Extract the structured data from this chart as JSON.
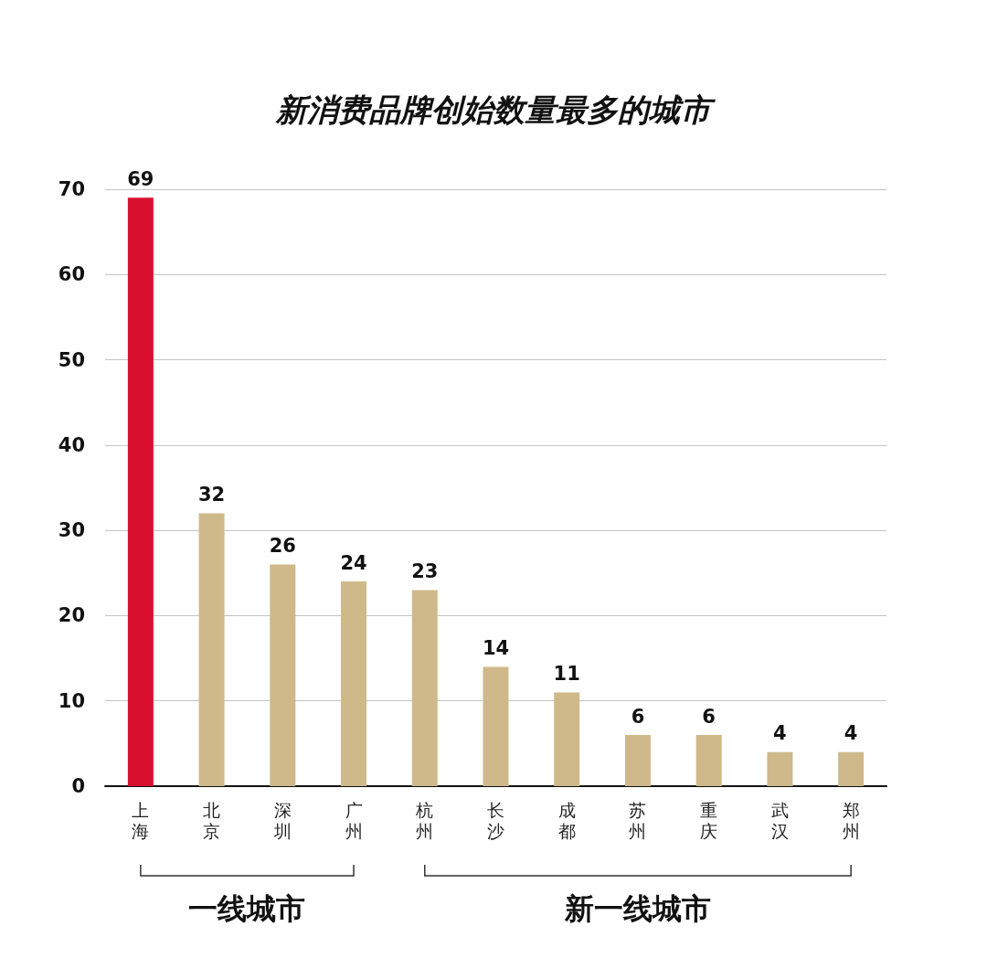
{
  "chart_data": {
    "type": "bar",
    "title": "新消费品牌创始数量最多的城市",
    "categories": [
      "上海",
      "北京",
      "深圳",
      "广州",
      "杭州",
      "长沙",
      "成都",
      "苏州",
      "重庆",
      "武汉",
      "郑州"
    ],
    "values": [
      69,
      32,
      26,
      24,
      23,
      14,
      11,
      6,
      6,
      4,
      4
    ],
    "colors": [
      "#d7102f",
      "#cfb98a",
      "#cfb98a",
      "#cfb98a",
      "#cfb98a",
      "#cfb98a",
      "#cfb98a",
      "#cfb98a",
      "#cfb98a",
      "#cfb98a",
      "#cfb98a"
    ],
    "ylim": [
      0,
      70
    ],
    "yticks": [
      0,
      10,
      20,
      30,
      40,
      50,
      60,
      70
    ],
    "grid": "y",
    "data_labels": true,
    "annotations": [
      "一线城市",
      "新一线城市"
    ]
  }
}
